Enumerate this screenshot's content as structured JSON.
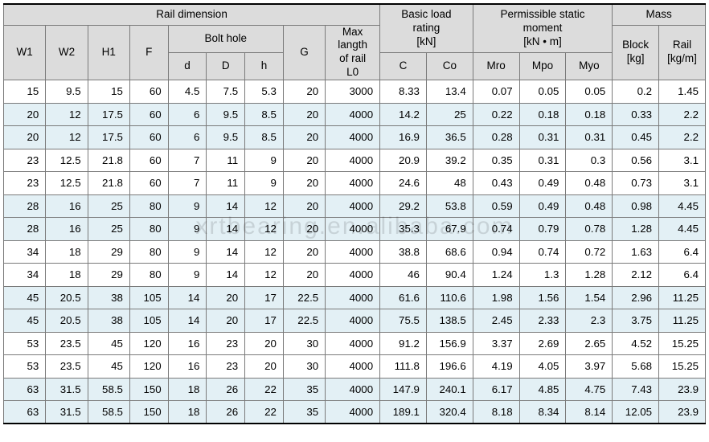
{
  "watermark": "xrtbearing.en.alibaba.com",
  "col_widths_pct": [
    5.7,
    5.7,
    5.7,
    5.2,
    5.2,
    5.2,
    5.2,
    5.7,
    7.4,
    6.3,
    6.3,
    6.3,
    6.3,
    6.3,
    6.3,
    6.3
  ],
  "header": {
    "rail_dimension": "Rail dimension",
    "basic_load": "Basic load\nrating\n[kN]",
    "perm_moment": "Permissible static\nmoment\n[kN • m]",
    "mass": "Mass",
    "w1": "W1",
    "w2": "W2",
    "h1": "H1",
    "f": "F",
    "bolt_hole": "Bolt hole",
    "g": "G",
    "max_length": "Max\nlangth\nof rail\nL0",
    "d": "d",
    "D": "D",
    "h": "h",
    "c": "C",
    "co": "Co",
    "mro": "Mro",
    "mpo": "Mpo",
    "myo": "Myo",
    "block": "Block\n[kg]",
    "rail": "Rail\n[kg/m]"
  },
  "rows": [
    [
      "15",
      "9.5",
      "15",
      "60",
      "4.5",
      "7.5",
      "5.3",
      "20",
      "3000",
      "8.33",
      "13.4",
      "0.07",
      "0.05",
      "0.05",
      "0.2",
      "1.45"
    ],
    [
      "20",
      "12",
      "17.5",
      "60",
      "6",
      "9.5",
      "8.5",
      "20",
      "4000",
      "14.2",
      "25",
      "0.22",
      "0.18",
      "0.18",
      "0.33",
      "2.2"
    ],
    [
      "20",
      "12",
      "17.5",
      "60",
      "6",
      "9.5",
      "8.5",
      "20",
      "4000",
      "16.9",
      "36.5",
      "0.28",
      "0.31",
      "0.31",
      "0.45",
      "2.2"
    ],
    [
      "23",
      "12.5",
      "21.8",
      "60",
      "7",
      "11",
      "9",
      "20",
      "4000",
      "20.9",
      "39.2",
      "0.35",
      "0.31",
      "0.3",
      "0.56",
      "3.1"
    ],
    [
      "23",
      "12.5",
      "21.8",
      "60",
      "7",
      "11",
      "9",
      "20",
      "4000",
      "24.6",
      "48",
      "0.43",
      "0.49",
      "0.48",
      "0.73",
      "3.1"
    ],
    [
      "28",
      "16",
      "25",
      "80",
      "9",
      "14",
      "12",
      "20",
      "4000",
      "29.2",
      "53.8",
      "0.59",
      "0.49",
      "0.48",
      "0.98",
      "4.45"
    ],
    [
      "28",
      "16",
      "25",
      "80",
      "9",
      "14",
      "12",
      "20",
      "4000",
      "35.3",
      "67.9",
      "0.74",
      "0.79",
      "0.78",
      "1.28",
      "4.45"
    ],
    [
      "34",
      "18",
      "29",
      "80",
      "9",
      "14",
      "12",
      "20",
      "4000",
      "38.8",
      "68.6",
      "0.94",
      "0.74",
      "0.72",
      "1.63",
      "6.4"
    ],
    [
      "34",
      "18",
      "29",
      "80",
      "9",
      "14",
      "12",
      "20",
      "4000",
      "46",
      "90.4",
      "1.24",
      "1.3",
      "1.28",
      "2.12",
      "6.4"
    ],
    [
      "45",
      "20.5",
      "38",
      "105",
      "14",
      "20",
      "17",
      "22.5",
      "4000",
      "61.6",
      "110.6",
      "1.98",
      "1.56",
      "1.54",
      "2.96",
      "11.25"
    ],
    [
      "45",
      "20.5",
      "38",
      "105",
      "14",
      "20",
      "17",
      "22.5",
      "4000",
      "75.5",
      "138.5",
      "2.45",
      "2.33",
      "2.3",
      "3.75",
      "11.25"
    ],
    [
      "53",
      "23.5",
      "45",
      "120",
      "16",
      "23",
      "20",
      "30",
      "4000",
      "91.2",
      "156.9",
      "3.37",
      "2.69",
      "2.65",
      "4.52",
      "15.25"
    ],
    [
      "53",
      "23.5",
      "45",
      "120",
      "16",
      "23",
      "20",
      "30",
      "4000",
      "111.8",
      "196.6",
      "4.19",
      "4.05",
      "3.97",
      "5.68",
      "15.25"
    ],
    [
      "63",
      "31.5",
      "58.5",
      "150",
      "18",
      "26",
      "22",
      "35",
      "4000",
      "147.9",
      "240.1",
      "6.17",
      "4.85",
      "4.75",
      "7.43",
      "23.9"
    ],
    [
      "63",
      "31.5",
      "58.5",
      "150",
      "18",
      "26",
      "22",
      "35",
      "4000",
      "189.1",
      "320.4",
      "8.18",
      "8.34",
      "8.14",
      "12.05",
      "23.9"
    ]
  ],
  "row_colors": [
    "white",
    "blue",
    "blue",
    "white",
    "white",
    "blue",
    "blue",
    "white",
    "white",
    "blue",
    "blue",
    "white",
    "white",
    "blue",
    "blue"
  ],
  "colors": {
    "header_bg": "#dcdcdc",
    "row_alt_bg": "#e3f0f5",
    "border": "#7a7a7a",
    "outer_border": "#000000"
  }
}
